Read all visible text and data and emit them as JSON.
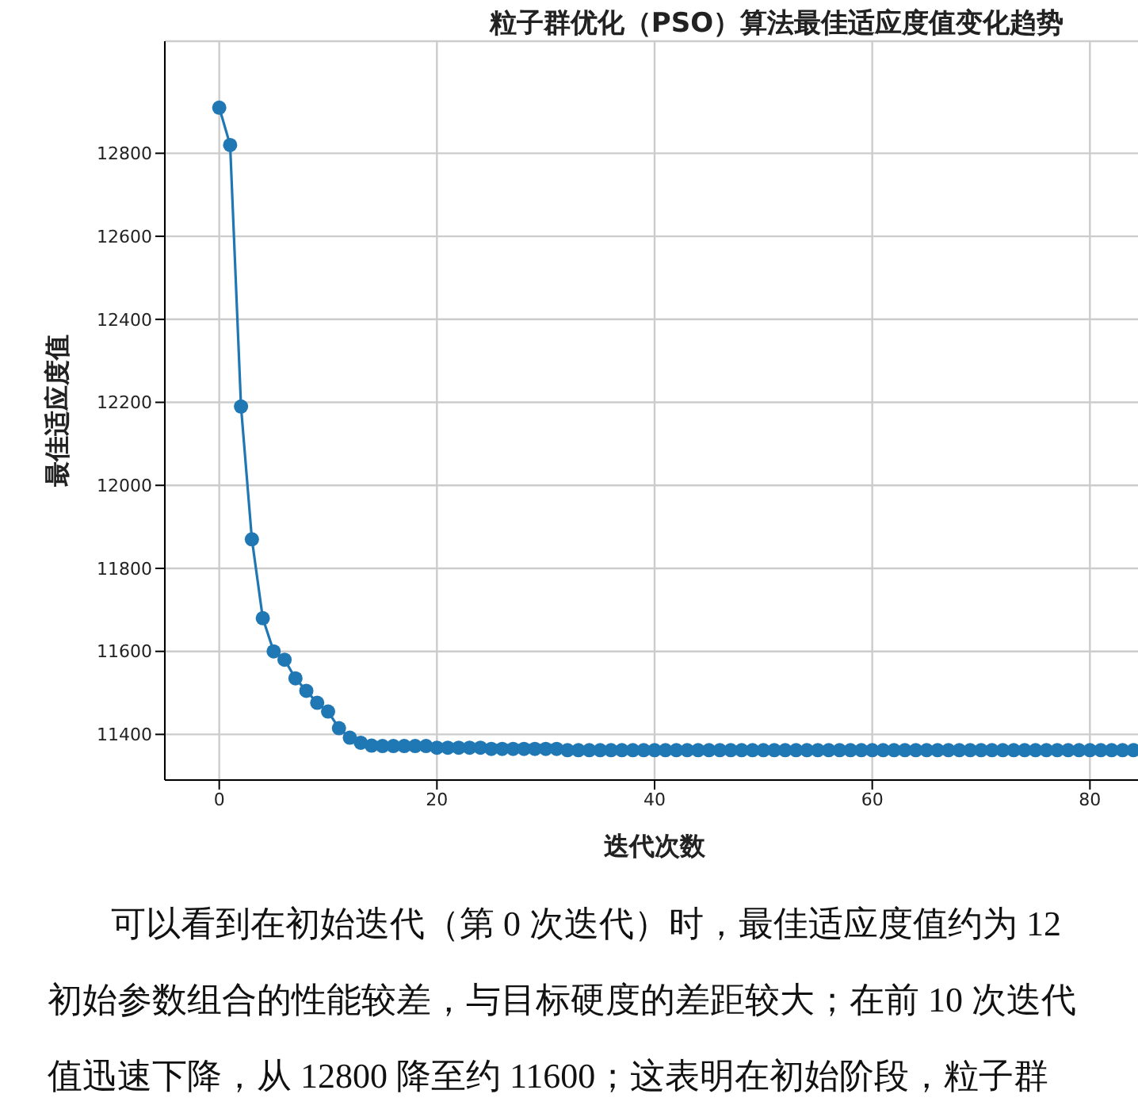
{
  "chart_data": {
    "type": "line",
    "title": "粒子群优化（PSO）算法最佳适应度值变化趋势",
    "xlabel": "迭代次数",
    "ylabel": "最佳适应度值",
    "x": [
      0,
      1,
      2,
      3,
      4,
      5,
      6,
      7,
      8,
      9,
      10,
      11,
      12,
      13,
      14,
      15,
      16,
      17,
      18,
      19,
      20,
      21,
      22,
      23,
      24,
      25,
      26,
      27,
      28,
      29,
      30,
      31,
      32,
      33,
      34,
      35,
      36,
      37,
      38,
      39,
      40,
      41,
      42,
      43,
      44,
      45,
      46,
      47,
      48,
      49,
      50,
      51,
      52,
      53,
      54,
      55,
      56,
      57,
      58,
      59,
      60,
      61,
      62,
      63,
      64,
      65,
      66,
      67,
      68,
      69,
      70,
      71,
      72,
      73,
      74,
      75,
      76,
      77,
      78,
      79,
      80,
      81,
      82,
      83,
      84
    ],
    "series": [
      {
        "color": "#1f77b4",
        "values": [
          12910,
          12820,
          12190,
          11870,
          11680,
          11600,
          11580,
          11535,
          11505,
          11476,
          11455,
          11415,
          11392,
          11380,
          11373,
          11372,
          11372,
          11372,
          11372,
          11372,
          11368,
          11368,
          11368,
          11368,
          11368,
          11365,
          11365,
          11365,
          11365,
          11365,
          11365,
          11365,
          11362,
          11362,
          11362,
          11362,
          11362,
          11362,
          11362,
          11362,
          11362,
          11362,
          11362,
          11362,
          11362,
          11362,
          11362,
          11362,
          11362,
          11362,
          11362,
          11362,
          11362,
          11362,
          11362,
          11362,
          11362,
          11362,
          11362,
          11362,
          11362,
          11362,
          11362,
          11362,
          11362,
          11362,
          11362,
          11362,
          11362,
          11362,
          11362,
          11362,
          11362,
          11362,
          11362,
          11362,
          11362,
          11362,
          11362,
          11362,
          11362,
          11362,
          11362,
          11362,
          11362
        ]
      }
    ],
    "xlim": [
      -5,
      85
    ],
    "xticks": [
      0,
      20,
      40,
      60,
      80
    ],
    "ylim": [
      11290,
      13070
    ],
    "yticks": [
      11400,
      11600,
      11800,
      12000,
      12200,
      12400,
      12600,
      12800
    ],
    "grid": true,
    "marker": "circle",
    "line_style": "solid",
    "annotations": [
      "可以看到在初始迭代（第 0 次迭代）时，最佳适应度值约为 12",
      "初始参数组合的性能较差，与目标硬度的差距较大；在前 10 次迭代",
      "值迅速下降，从 12800 降至约 11600；这表明在初始阶段，粒子群"
    ]
  }
}
